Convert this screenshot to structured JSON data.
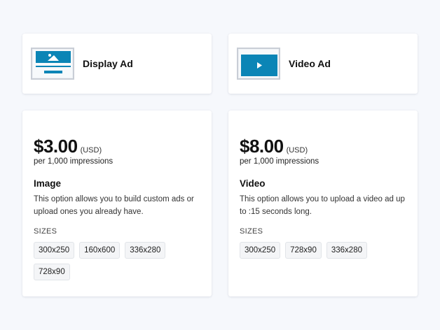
{
  "ad_types": [
    {
      "label": "Display Ad",
      "icon": "display-ad-icon"
    },
    {
      "label": "Video Ad",
      "icon": "video-ad-icon"
    }
  ],
  "plans": [
    {
      "price": "$3.00",
      "currency": "(USD)",
      "per": "per 1,000 impressions",
      "title": "Image",
      "description": "This option allows you to build custom ads or upload ones you already have.",
      "sizes_label": "SIZES",
      "sizes": [
        "300x250",
        "160x600",
        "336x280",
        "728x90"
      ]
    },
    {
      "price": "$8.00",
      "currency": "(USD)",
      "per": "per 1,000 impressions",
      "title": "Video",
      "description": "This option allows you to upload a video ad up to :15 seconds long.",
      "sizes_label": "SIZES",
      "sizes": [
        "300x250",
        "728x90",
        "336x280"
      ]
    }
  ],
  "colors": {
    "accent": "#0b85b6",
    "background": "#f6f8fc"
  }
}
